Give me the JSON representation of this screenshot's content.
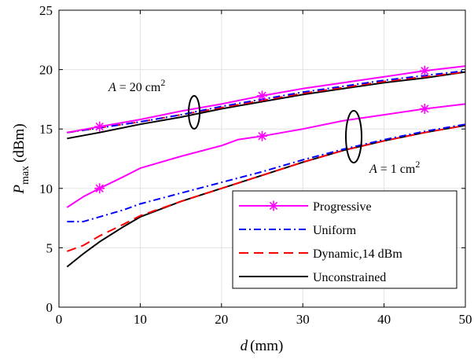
{
  "chart_data": {
    "type": "line",
    "xlabel": "d",
    "xlabel_unit": "(mm)",
    "ylabel_main": "P",
    "ylabel_sub": "max",
    "ylabel_unit": "(dBm)",
    "xlim": [
      0,
      50
    ],
    "ylim": [
      0,
      25
    ],
    "xticks": [
      "0",
      "10",
      "20",
      "30",
      "40",
      "50"
    ],
    "yticks": [
      "0",
      "5",
      "10",
      "15",
      "20",
      "25"
    ],
    "grid": true,
    "legend_position": "lower-right",
    "annotations": [
      {
        "text_prefix": "A",
        "text_body": " = 20 cm",
        "text_sup": "2"
      },
      {
        "text_prefix": "A",
        "text_body": " = 1 cm",
        "text_sup": "2"
      }
    ],
    "series": [
      {
        "name": "Progressive",
        "color": "#ff00ff",
        "style": "solid",
        "marker": "asterisk",
        "marker_x": [
          5,
          25,
          45
        ],
        "groups": [
          {
            "x": [
              1,
              5,
              10,
              15,
              20,
              25,
              30,
              35,
              40,
              45,
              50
            ],
            "y": [
              14.7,
              15.2,
              15.8,
              16.5,
              17.1,
              17.8,
              18.4,
              18.9,
              19.4,
              19.9,
              20.3
            ]
          },
          {
            "x": [
              1,
              3,
              5,
              8,
              10,
              15,
              20,
              22,
              25,
              30,
              35,
              40,
              45,
              50
            ],
            "y": [
              8.4,
              9.3,
              10.0,
              11.0,
              11.7,
              12.7,
              13.6,
              14.1,
              14.4,
              15.0,
              15.7,
              16.2,
              16.7,
              17.1
            ]
          }
        ]
      },
      {
        "name": "Uniform",
        "color": "#0000ff",
        "style": "dashdot",
        "groups": [
          {
            "x": [
              1,
              5,
              10,
              15,
              20,
              25,
              30,
              35,
              40,
              45,
              50
            ],
            "y": [
              14.7,
              15.1,
              15.6,
              16.2,
              16.9,
              17.5,
              18.1,
              18.6,
              19.1,
              19.5,
              19.9
            ]
          },
          {
            "x": [
              1,
              3,
              5,
              8,
              10,
              15,
              20,
              25,
              30,
              35,
              40,
              45,
              50
            ],
            "y": [
              7.2,
              7.2,
              7.6,
              8.2,
              8.7,
              9.6,
              10.5,
              11.4,
              12.4,
              13.3,
              14.1,
              14.8,
              15.4
            ]
          }
        ]
      },
      {
        "name": "Dynamic,14 dBm",
        "color": "#ff0000",
        "style": "dashed",
        "groups": [
          {
            "x": [
              1,
              5,
              10,
              15,
              20,
              25,
              30,
              35,
              40,
              45,
              50
            ],
            "y": [
              14.7,
              15.1,
              15.6,
              16.2,
              16.8,
              17.4,
              18.0,
              18.5,
              19.0,
              19.4,
              19.8
            ]
          },
          {
            "x": [
              1,
              3,
              5,
              8,
              10,
              15,
              20,
              25,
              30,
              35,
              40,
              45,
              50
            ],
            "y": [
              4.7,
              5.2,
              6.0,
              7.0,
              7.7,
              8.9,
              10.0,
              11.1,
              12.2,
              13.2,
              14.0,
              14.7,
              15.3
            ]
          }
        ]
      },
      {
        "name": "Unconstrained",
        "color": "#000000",
        "style": "solid",
        "groups": [
          {
            "x": [
              1,
              5,
              10,
              15,
              20,
              25,
              30,
              35,
              40,
              45,
              50
            ],
            "y": [
              14.2,
              14.7,
              15.4,
              16.0,
              16.7,
              17.3,
              17.9,
              18.4,
              18.9,
              19.3,
              19.8
            ]
          },
          {
            "x": [
              1,
              3,
              5,
              8,
              10,
              15,
              20,
              25,
              30,
              35,
              40,
              45,
              50
            ],
            "y": [
              3.4,
              4.5,
              5.5,
              6.8,
              7.6,
              8.9,
              10.0,
              11.1,
              12.2,
              13.2,
              14.0,
              14.7,
              15.3
            ]
          }
        ]
      }
    ]
  }
}
